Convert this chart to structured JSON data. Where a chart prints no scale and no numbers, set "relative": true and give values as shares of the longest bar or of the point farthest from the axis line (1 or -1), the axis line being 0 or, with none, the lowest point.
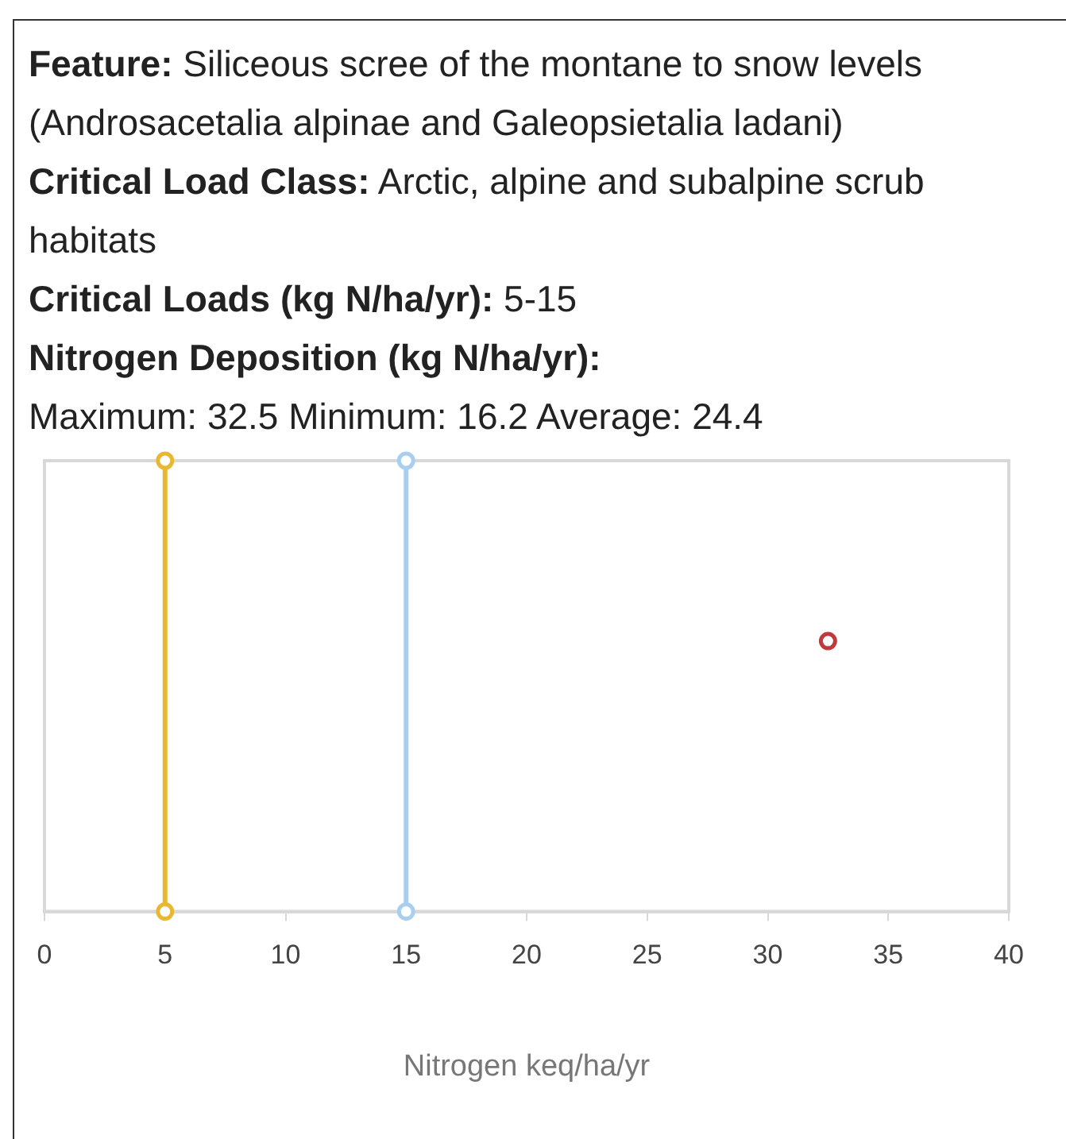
{
  "chart_data": {
    "type": "scatter",
    "relative": true,
    "annotations": [
      "Feature: Siliceous scree of the montane to snow levels (Androsacetalia alpinae and Galeopsietalia ladani)",
      "Critical Load Class: Arctic, alpine and subalpine scrub habitats",
      "Critical Loads (kg N/ha/yr): 5-15",
      "Nitrogen Deposition (kg N/ha/yr):"
    ],
    "subtitle": "Maximum: 32.5 Minimum: 16.2 Average: 24.4",
    "xlabel": "Nitrogen keq/ha/yr",
    "xlim": [
      0,
      40
    ],
    "xticks": [
      0,
      5,
      10,
      15,
      20,
      25,
      30,
      35,
      40
    ],
    "grid": false,
    "legend": false,
    "marker": "circle",
    "series": [
      {
        "type": "line",
        "color": "#e8b830",
        "x": [
          5,
          5
        ],
        "values": [
          0,
          1
        ]
      },
      {
        "type": "line",
        "color": "#a9cff0",
        "x": [
          15,
          15
        ],
        "values": [
          0,
          1
        ]
      },
      {
        "type": "scatter",
        "color": "#c0393b",
        "x": [
          32.5
        ],
        "values": [
          0.6
        ]
      }
    ]
  }
}
